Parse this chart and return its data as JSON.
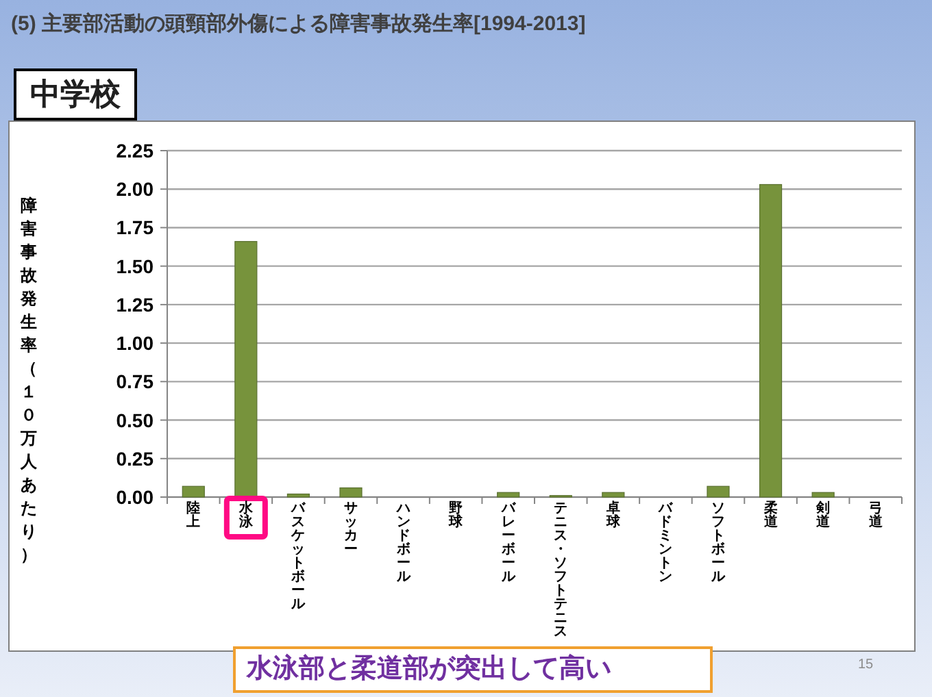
{
  "chart_data": {
    "type": "bar",
    "title": "(5) 主要部活動の頭頸部外傷による障害事故発生率[1994-2013]",
    "subtitle": "中学校",
    "ylabel": "障害事故発生率（１０万人あたり）",
    "categories": [
      "陸上",
      "水泳",
      "バスケットボール",
      "サッカー",
      "ハンドボール",
      "野球",
      "バレーボール",
      "テニス・ソフトテニス",
      "卓球",
      "バドミントン",
      "ソフトボール",
      "柔道",
      "剣道",
      "弓道"
    ],
    "values": [
      0.07,
      1.66,
      0.02,
      0.06,
      0,
      0,
      0.03,
      0.01,
      0.03,
      0,
      0.07,
      2.03,
      0.03,
      0
    ],
    "color": "#77933c",
    "ylim": [
      0,
      2.25
    ],
    "yticks": [
      {
        "value": 0,
        "label": "0.00"
      },
      {
        "value": 0.25,
        "label": "0.25"
      },
      {
        "value": 0.5,
        "label": "0.50"
      },
      {
        "value": 0.75,
        "label": "0.75"
      },
      {
        "value": 1,
        "label": "1.00"
      },
      {
        "value": 1.25,
        "label": "1.25"
      },
      {
        "value": 1.5,
        "label": "1.50"
      },
      {
        "value": 1.75,
        "label": "1.75"
      },
      {
        "value": 2,
        "label": "2.00"
      },
      {
        "value": 2.25,
        "label": "2.25"
      }
    ],
    "grid": "y",
    "annotations": [
      "水泳部と柔道部が突出して高い",
      "15"
    ]
  }
}
